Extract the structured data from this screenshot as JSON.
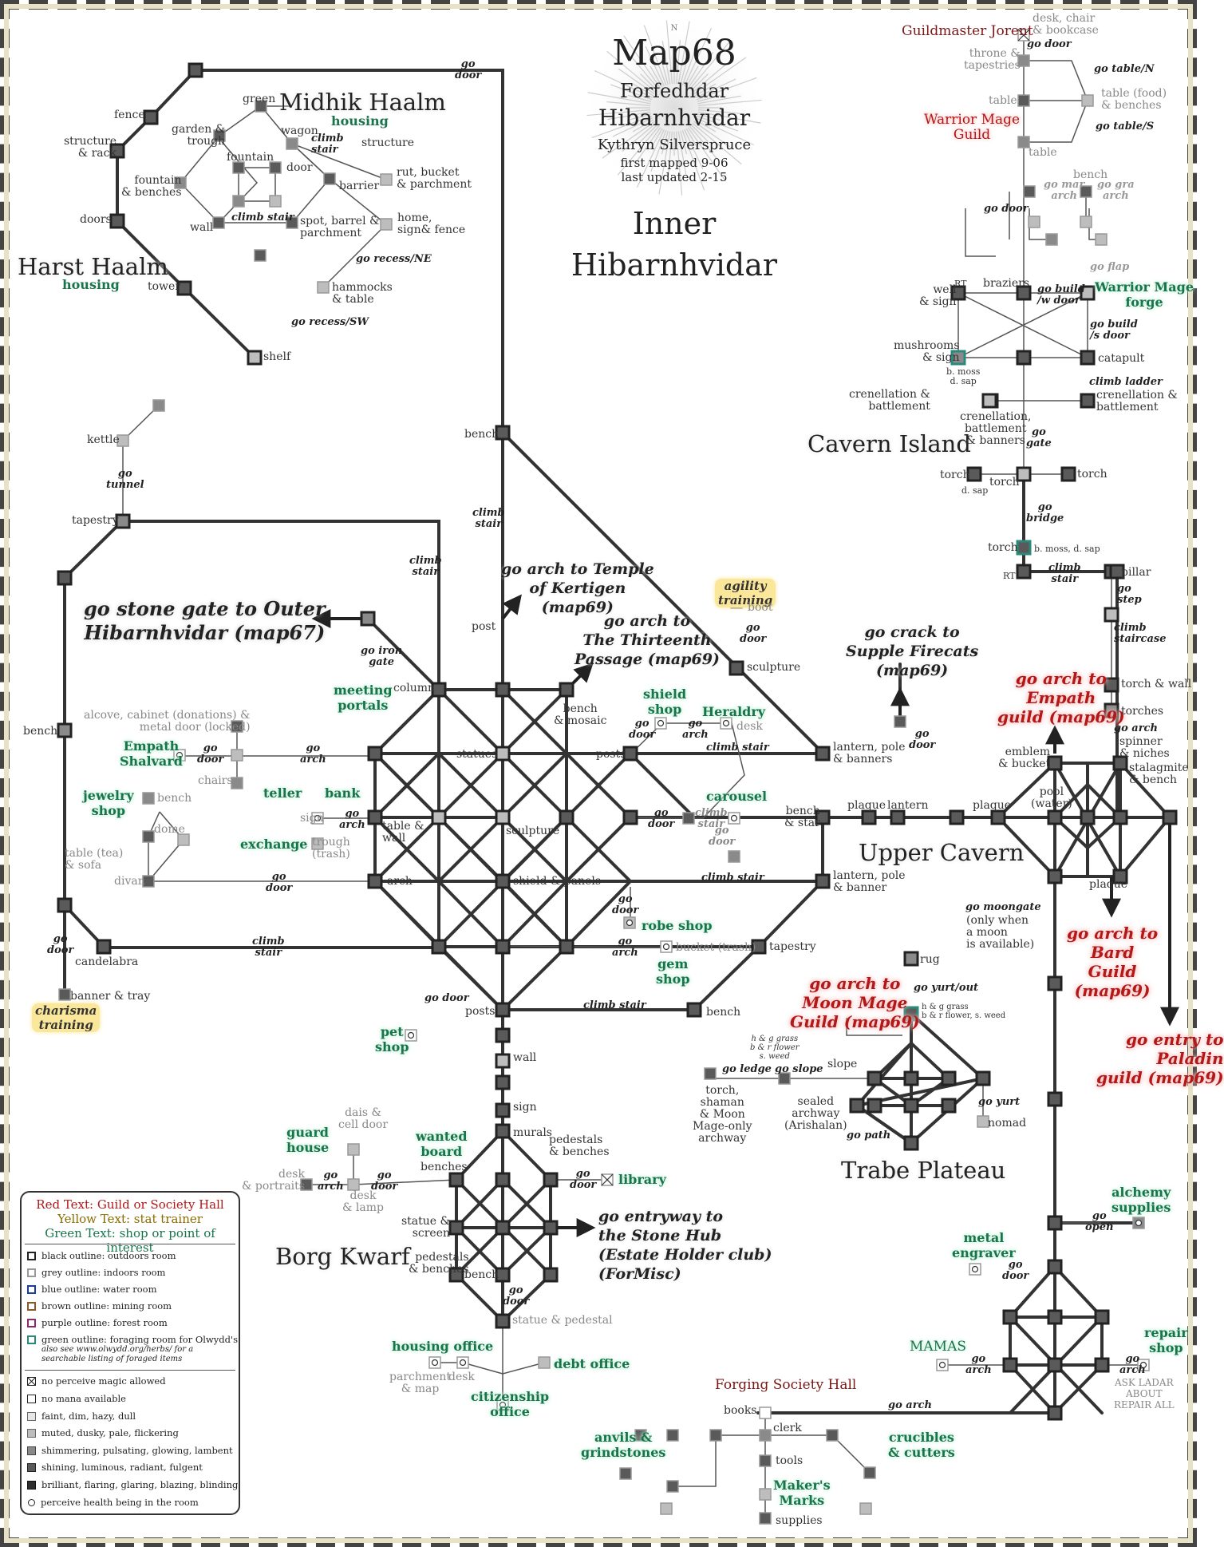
{
  "map": {
    "title": "Map68",
    "subtitle_1": "Forfedhdar",
    "subtitle_2": "Hibarnhvidar",
    "author": "Kythryn Silverspruce",
    "first_mapped": "first mapped 9-06",
    "last_updated": "last updated 2-15",
    "area_title_1": "Inner",
    "area_title_2": "Hibarnhvidar",
    "compass_letter": "N"
  },
  "areas": {
    "midhik_haalm": "Midhik Haalm",
    "harst_haalm": "Harst Haalm",
    "cavern_island": "Cavern Island",
    "upper_cavern": "Upper Cavern",
    "trabe_plateau": "Trabe Plateau",
    "borg_kwarf": "Borg Kwarf",
    "housing": "housing"
  },
  "rooms": {
    "fence": "fence",
    "structure_rack": "structure\n& rack",
    "doors": "doors",
    "tower": "tower",
    "shelf": "shelf",
    "green": "green",
    "garden_trough": "garden &\ntrough",
    "wagon": "wagon",
    "fountain": "fountain",
    "door": "door",
    "structure": "structure",
    "fountain_benches": "fountain\n& benches",
    "barrier": "barrier",
    "rut_bucket": "rut, bucket\n& parchment",
    "wall": "wall",
    "spot_barrel": "spot, barrel &\nparchment",
    "home_sign": "home,\nsign& fence",
    "hammocks": "hammocks\n& table",
    "kettle": "kettle",
    "tapestry": "tapestry",
    "bench": "bench",
    "candelabra": "candelabra",
    "banner_tray": "banner & tray",
    "alcove": "alcove, cabinet (donations) &\nmetal door (locked)",
    "chairs": "chairs",
    "dome": "dome",
    "table_tea": "table (tea)\n& sofa",
    "divan": "divan",
    "sign": "sign",
    "trough_trash": "trough\n(trash)",
    "table_wall": "table &\nwall",
    "arch": "arch",
    "column": "column",
    "post": "post",
    "statues": "statues",
    "sculpture": "sculpture",
    "shield_panels": "shield & panels",
    "bench_mosaic": "bench\n& mosaic",
    "posts": "posts",
    "lantern_pole_banners": "lantern, pole\n& banners",
    "lantern_pole_banner": "lantern, pole\n& banner",
    "bench_star": "bench\n& star",
    "tapestry2": "tapestry",
    "sculpture2": "sculpture",
    "boot": "boot",
    "desk": "desk",
    "bucket_trash": "bucket (trash)",
    "plaque": "plaque",
    "lantern": "lantern",
    "pool_water": "pool\n(water)",
    "emblem_bucket": "emblem\n& bucket",
    "spinner": "spinner\n& niches",
    "stalagmite": "stalagmite\n& bench",
    "rug": "rug",
    "slope": "slope",
    "torch_shaman": "torch,\nshaman\n& Moon\nMage-only\narchway",
    "sealed_archway": "sealed\narchway\n(Arishalan)",
    "nomad": "nomad",
    "hg_grass_1": "h & g grass\nb & r flower, s. weed",
    "hg_grass_2": "h & g grass\nb & r flower\ns. weed",
    "wall2": "wall",
    "sign2": "sign",
    "murals": "murals",
    "pedestals_benches": "pedestals\n& benches",
    "benches": "benches",
    "statue_screen": "statue &\nscreen",
    "pedestals_benches2": "pedestals\n& benches",
    "bench2": "bench",
    "statue_pedestal": "statue & pedestal",
    "dais_cell": "dais &\ncell door",
    "desk_portraits": "desk\n& portraits",
    "desk_lamp": "desk\n& lamp",
    "parchment_map": "parchment\n& map",
    "desk2": "desk",
    "desk_chair": "desk, chair\n& bookcase",
    "throne": "throne &\ntapestries",
    "table": "table",
    "table_food": "table (food)\n& benches",
    "table2": "table",
    "bench3": "bench",
    "well_sign": "well\n& sign",
    "rt": "RT",
    "braziers": "braziers",
    "mushrooms": "mushrooms\n& sign",
    "bmoss_dsap": "b. moss\nd. sap",
    "catapult": "catapult",
    "crenellation_left": "crenellation &\nbattlement",
    "crenellation_mid": "crenellation,\nbattlement\n& banners",
    "crenellation_right": "crenellation &\nbattlement",
    "torch": "torch",
    "dsap": "d. sap",
    "torch_bmoss": "torch",
    "bmoss_dsap2": "b. moss, d. sap",
    "rt2": "RT",
    "pillar": "pillar",
    "torch_wall": "torch & wall",
    "torches": "torches",
    "plaque2": "plaque",
    "books": "books",
    "clerk": "clerk",
    "tools": "tools",
    "supplies": "supplies",
    "ask_ladar": "ASK LADAR\nABOUT\nREPAIR ALL"
  },
  "directions": {
    "go_door_top": "go\ndoor",
    "climb_stair": "climb\nstair",
    "climb_stair2": "climb stair",
    "go_recess_ne": "go recess/NE",
    "go_recess_sw": "go recess/SW",
    "go_tunnel": "go\ntunnel",
    "climb_stair_v": "climb\nstair",
    "go_iron_gate": "go iron\ngate",
    "go_arch": "go\narch",
    "go_door": "go\ndoor",
    "go_door_inline": "go door",
    "go_arch_inline": "go arch",
    "go_table_n": "go table/N",
    "go_table_s": "go table/S",
    "go_flap": "go flap",
    "go_build_w": "go build\n/w door",
    "go_build_s": "go build\n/s door",
    "climb_ladder": "climb ladder",
    "go_gate": "go\ngate",
    "go_bridge": "go\nbridge",
    "climb_staircase": "climb\nstaircase",
    "go_step": "go\nstep",
    "go_moongate": "go moongate",
    "moongate_note": "(only when\na moon\nis available)",
    "go_yurt_out": "go yurt/out",
    "go_yurt": "go yurt",
    "go_ledge": "go ledge",
    "go_slope": "go slope",
    "go_path": "go path",
    "go_open": "go\nopen",
    "go_mar_arch": "go mar\narch",
    "go_gra_arch": "go gra\narch"
  },
  "exits": {
    "outer": "go stone gate to Outer\nHibarnhvidar (map67)",
    "temple": "go arch to Temple\nof Kertigen\n(map69)",
    "thirteenth": "go arch to\nThe Thirteenth\nPassage (map69)",
    "supple": "go crack to\nSupple Firecats\n(map69)",
    "stone_hub": "go entryway to\nthe Stone Hub\n(Estate Holder club)\n(ForMisc)"
  },
  "guilds": {
    "guildmaster": "Guildmaster Jorent",
    "warrior_mage": "Warrior Mage\nGuild",
    "forging": "Forging Society Hall",
    "empath": "go arch to\nEmpath\nguild (map69)",
    "bard": "go arch to\nBard\nGuild\n(map69)",
    "paladin": "go entry to\nPaladin\nguild (map69)",
    "moon_mage": "go arch to\nMoon Mage\nGuild (map69)"
  },
  "shops": {
    "meeting_portals": "meeting\nportals",
    "empath_shalvard": "Empath\nShalvard",
    "jewelry": "jewelry\nshop",
    "teller": "teller",
    "bank": "bank",
    "exchange": "exchange",
    "shield": "shield\nshop",
    "heraldry": "Heraldry",
    "carousel": "carousel",
    "robe": "robe shop",
    "gem": "gem\nshop",
    "pet": "pet\nshop",
    "guard_house": "guard\nhouse",
    "wanted_board": "wanted\nboard",
    "library": "library",
    "housing_office": "housing office",
    "debt_office": "debt office",
    "citizenship": "citizenship\noffice",
    "alchemy": "alchemy\nsupplies",
    "metal_engraver": "metal\nengraver",
    "mamas": "MAMAS",
    "repair": "repair\nshop",
    "anvils": "anvils &\ngrindstones",
    "crucibles": "crucibles\n& cutters",
    "makers_marks": "Maker's\nMarks",
    "warrior_forge": "Warrior Mage\nforge"
  },
  "trainers": {
    "agility": "agility\ntraining",
    "charisma": "charisma\ntraining"
  },
  "legend": {
    "red": "Red Text: Guild or Society Hall",
    "yellow": "Yellow Text: stat trainer",
    "green": "Green Text: shop or point of interest",
    "black_outline": "black outline: outdoors room",
    "grey_outline": "grey outline: indoors room",
    "blue_outline": "blue outline: water room",
    "brown_outline": "brown outline: mining room",
    "purple_outline": "purple outline: forest room",
    "green_outline": "green outline: foraging room for Olwydd's",
    "green_note": "also see www.olwydd.org/herbs/ for a\nsearchable listing of foraged items",
    "no_perceive": "no perceive magic allowed",
    "no_mana": "no mana available",
    "faint": "faint, dim, hazy, dull",
    "muted": "muted, dusky, pale, flickering",
    "shimmering": "shimmering, pulsating, glowing, lambent",
    "shining": "shining, luminous, radiant, fulgent",
    "brilliant": "brilliant, flaring, glaring, blazing, blinding",
    "health": "perceive health being in the room",
    "colors": {
      "red": "#b21818",
      "yellow": "#8a6d00",
      "green": "#18744a",
      "blue": "#1d3d9a",
      "brown": "#8a5a2b",
      "purple": "#8a2b6e",
      "teal": "#2a8a7a"
    }
  }
}
